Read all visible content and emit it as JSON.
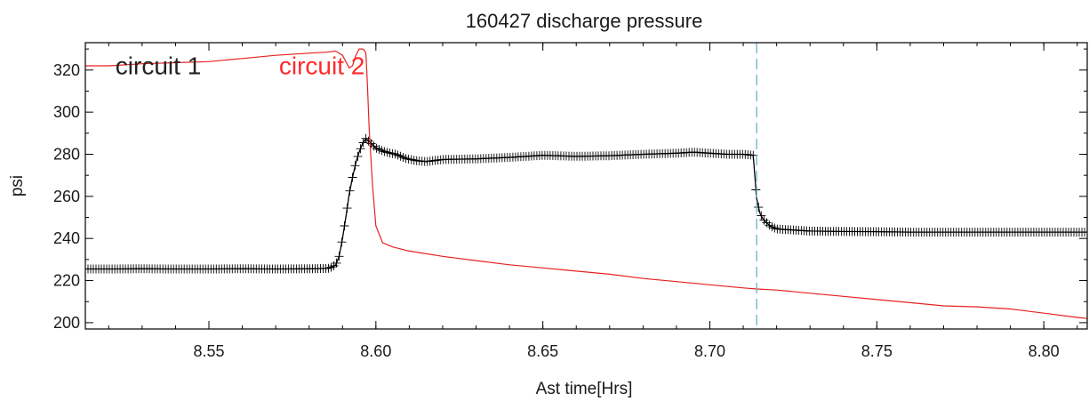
{
  "chart_data": {
    "type": "line",
    "title": "160427 discharge pressure",
    "xlabel": "Ast time[Hrs]",
    "ylabel": "psi",
    "xlim": [
      8.513,
      8.813
    ],
    "ylim": [
      197,
      333
    ],
    "xticks": [
      8.55,
      8.6,
      8.65,
      8.7,
      8.75,
      8.8
    ],
    "xtick_labels": [
      "8.55",
      "8.60",
      "8.65",
      "8.70",
      "8.75",
      "8.80"
    ],
    "yticks": [
      200,
      220,
      240,
      260,
      280,
      300,
      320
    ],
    "ytick_labels": [
      "200",
      "220",
      "240",
      "260",
      "280",
      "300",
      "320"
    ],
    "grid": false,
    "annotations": [
      {
        "text": "circuit 1",
        "color": "#222222",
        "x": 8.522,
        "y": 318
      },
      {
        "text": "circuit 2",
        "color": "#ff2a2a",
        "x": 8.571,
        "y": 318
      }
    ],
    "vline": {
      "x": 8.714,
      "color": "#6ab0c8",
      "style": "dashed"
    },
    "series": [
      {
        "color": "#000000",
        "marker": "plus",
        "x": [
          8.513,
          8.52,
          8.53,
          8.54,
          8.55,
          8.56,
          8.57,
          8.58,
          8.586,
          8.588,
          8.589,
          8.59,
          8.591,
          8.592,
          8.593,
          8.594,
          8.595,
          8.596,
          8.597,
          8.598,
          8.6,
          8.603,
          8.606,
          8.609,
          8.612,
          8.615,
          8.62,
          8.63,
          8.64,
          8.65,
          8.66,
          8.67,
          8.68,
          8.69,
          8.695,
          8.7,
          8.705,
          8.71,
          8.713,
          8.714,
          8.715,
          8.716,
          8.718,
          8.72,
          8.725,
          8.73,
          8.74,
          8.75,
          8.76,
          8.77,
          8.78,
          8.79,
          8.8,
          8.813
        ],
        "y": [
          225.5,
          225.5,
          225.6,
          225.5,
          225.5,
          225.6,
          225.5,
          225.6,
          225.8,
          227.5,
          231.5,
          240,
          250,
          261,
          269,
          276,
          281,
          285,
          287.5,
          286,
          283,
          281,
          280,
          278,
          277,
          276.5,
          277.5,
          277.8,
          278.5,
          279.5,
          279,
          279.3,
          280,
          280.5,
          281,
          280.5,
          280,
          280,
          279.5,
          259,
          252,
          249,
          246,
          244.5,
          244,
          243.5,
          243.3,
          243.2,
          243,
          243,
          243,
          243,
          243,
          243
        ]
      },
      {
        "color": "#e82020",
        "marker": "none",
        "x": [
          8.513,
          8.52,
          8.53,
          8.54,
          8.55,
          8.56,
          8.57,
          8.58,
          8.585,
          8.588,
          8.59,
          8.591,
          8.592,
          8.593,
          8.594,
          8.595,
          8.5955,
          8.596,
          8.5965,
          8.597,
          8.5975,
          8.598,
          8.599,
          8.6,
          8.602,
          8.605,
          8.61,
          8.62,
          8.63,
          8.64,
          8.65,
          8.66,
          8.67,
          8.68,
          8.69,
          8.7,
          8.71,
          8.714,
          8.72,
          8.73,
          8.74,
          8.75,
          8.76,
          8.77,
          8.78,
          8.79,
          8.8,
          8.81,
          8.813
        ],
        "y": [
          322,
          322,
          323,
          323.5,
          324,
          325.5,
          327,
          328,
          328.5,
          329,
          327,
          324,
          321,
          322,
          327,
          330,
          330,
          330,
          329.5,
          328,
          312,
          292,
          265,
          246,
          238,
          236,
          234,
          231.5,
          229.5,
          227.5,
          226,
          224.5,
          223,
          221,
          219.5,
          218,
          216.5,
          216,
          215.5,
          214,
          212.5,
          211,
          209.5,
          208,
          207.5,
          206.5,
          204.5,
          202.5,
          202
        ]
      }
    ]
  }
}
